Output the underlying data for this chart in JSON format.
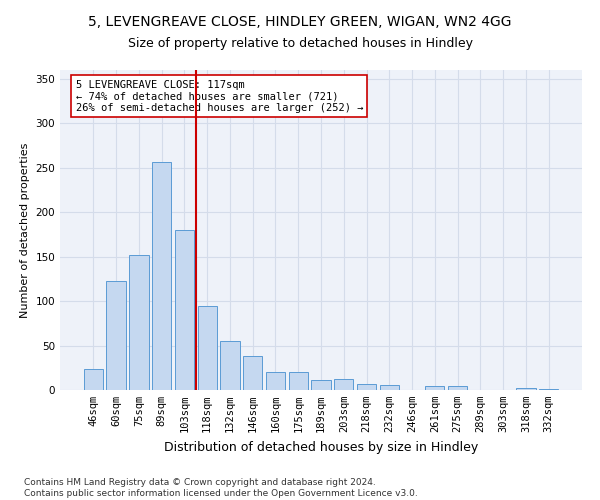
{
  "title": "5, LEVENGREAVE CLOSE, HINDLEY GREEN, WIGAN, WN2 4GG",
  "subtitle": "Size of property relative to detached houses in Hindley",
  "xlabel": "Distribution of detached houses by size in Hindley",
  "ylabel": "Number of detached properties",
  "categories": [
    "46sqm",
    "60sqm",
    "75sqm",
    "89sqm",
    "103sqm",
    "118sqm",
    "132sqm",
    "146sqm",
    "160sqm",
    "175sqm",
    "189sqm",
    "203sqm",
    "218sqm",
    "232sqm",
    "246sqm",
    "261sqm",
    "275sqm",
    "289sqm",
    "303sqm",
    "318sqm",
    "332sqm"
  ],
  "values": [
    24,
    123,
    152,
    257,
    180,
    95,
    55,
    38,
    20,
    20,
    11,
    12,
    7,
    6,
    0,
    5,
    4,
    0,
    0,
    2,
    1
  ],
  "bar_color": "#c5d8f0",
  "bar_edge_color": "#5b9bd5",
  "vline_color": "#cc0000",
  "annotation_text": "5 LEVENGREAVE CLOSE: 117sqm\n← 74% of detached houses are smaller (721)\n26% of semi-detached houses are larger (252) →",
  "annotation_box_color": "#ffffff",
  "annotation_box_edge": "#cc0000",
  "ylim": [
    0,
    360
  ],
  "yticks": [
    0,
    50,
    100,
    150,
    200,
    250,
    300,
    350
  ],
  "grid_color": "#d4dcea",
  "bg_color": "#eef2f9",
  "footnote": "Contains HM Land Registry data © Crown copyright and database right 2024.\nContains public sector information licensed under the Open Government Licence v3.0.",
  "title_fontsize": 10,
  "subtitle_fontsize": 9,
  "xlabel_fontsize": 9,
  "ylabel_fontsize": 8,
  "tick_fontsize": 7.5,
  "annot_fontsize": 7.5,
  "footnote_fontsize": 6.5
}
